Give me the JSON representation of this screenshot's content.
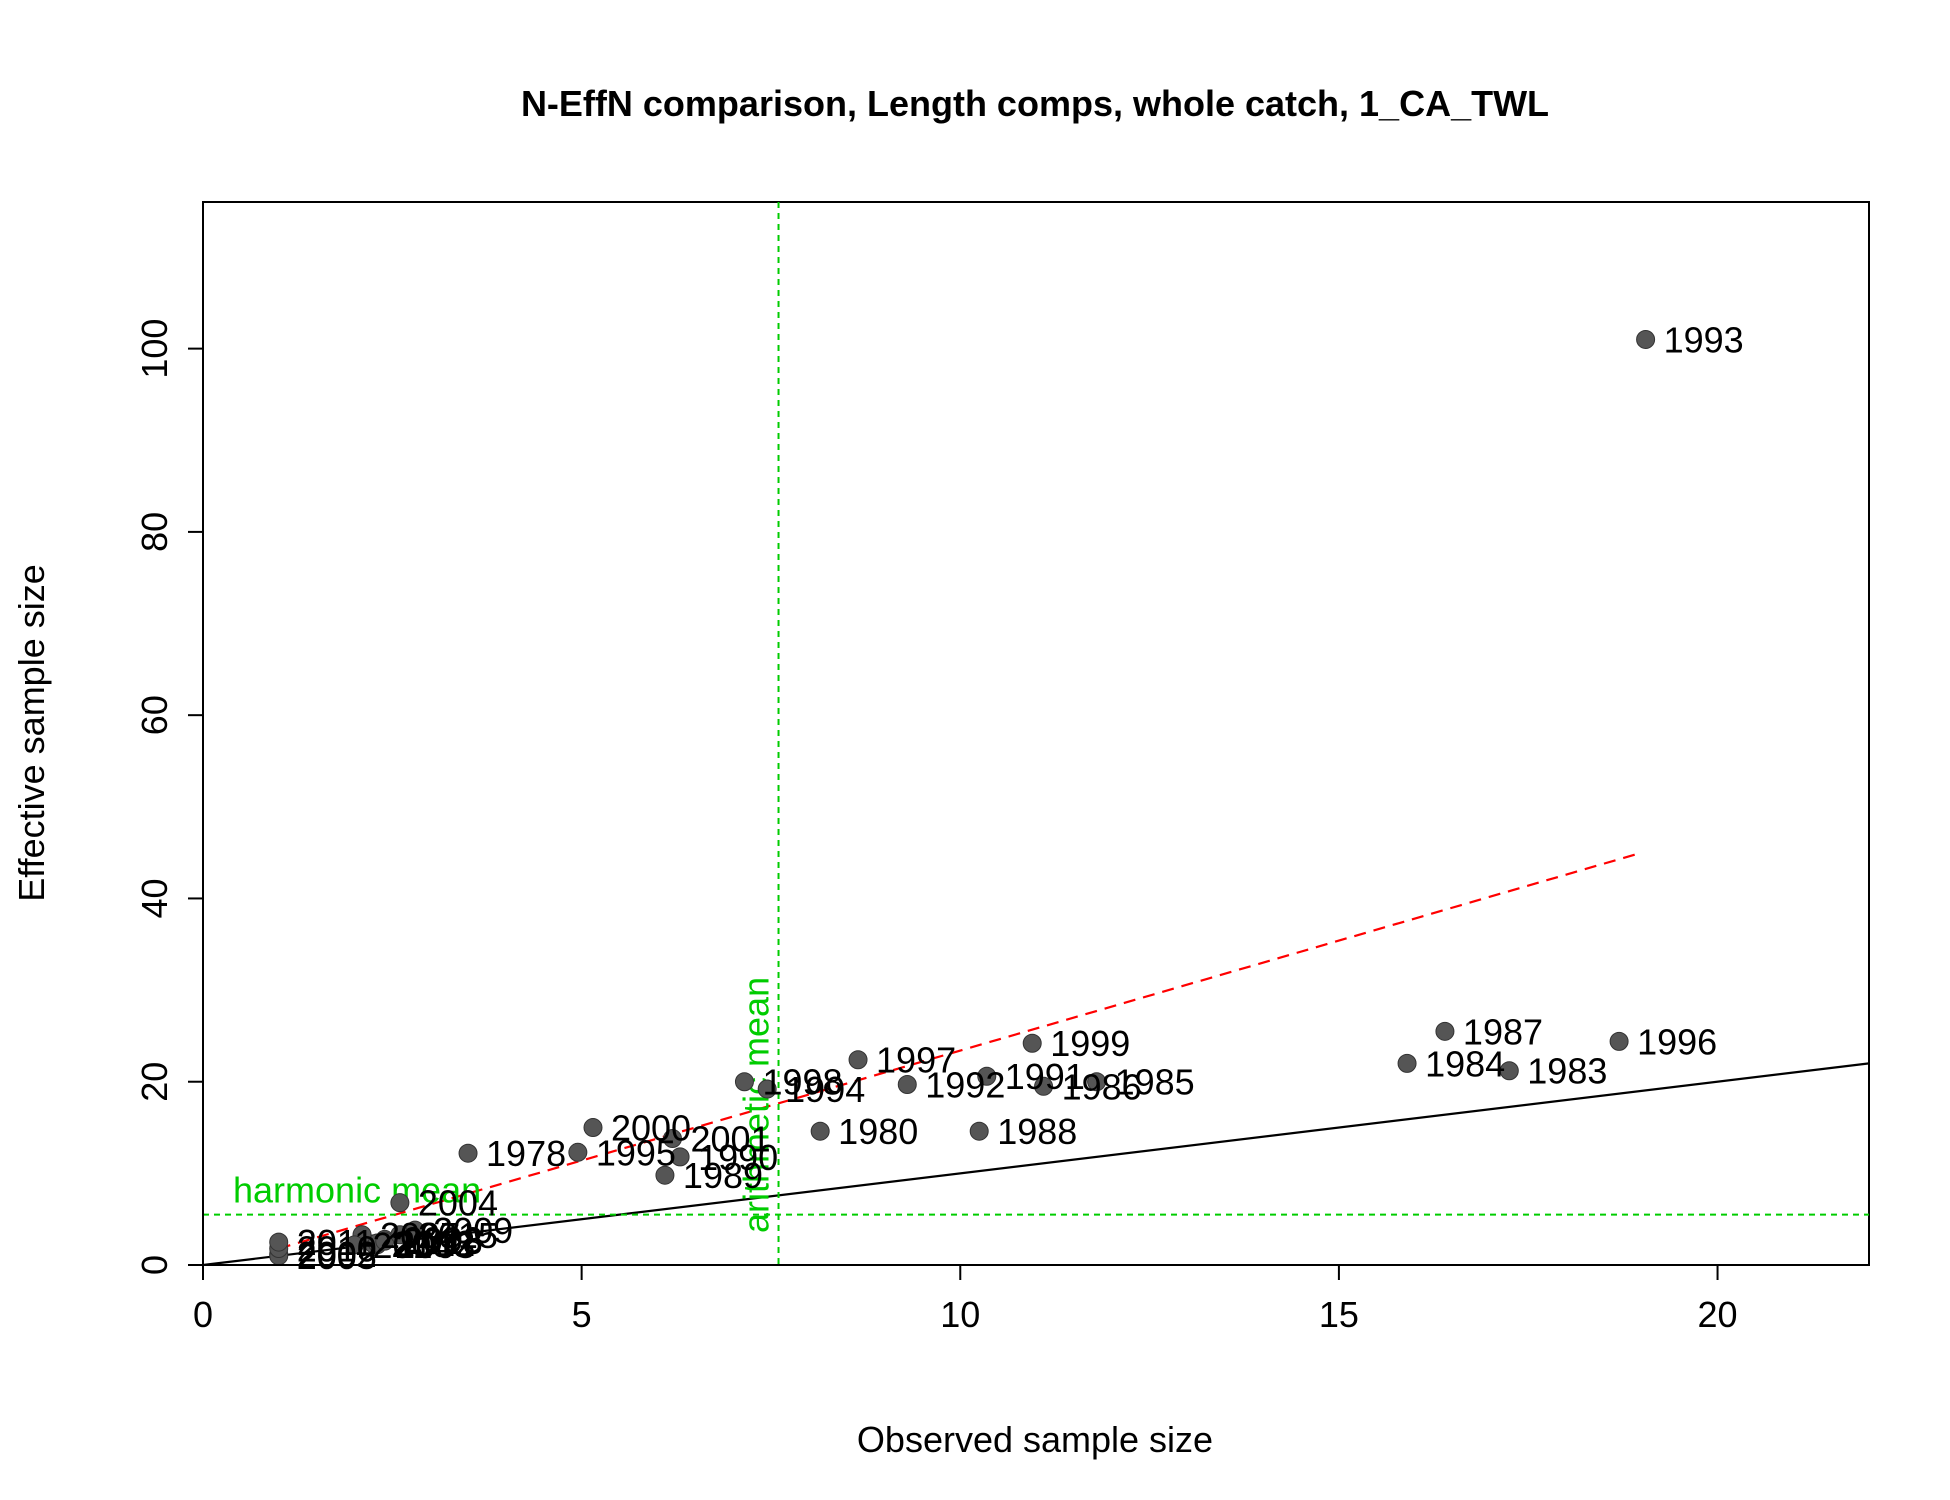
{
  "chart_data": {
    "type": "scatter",
    "title": "N-EffN comparison, Length comps, whole catch, 1_CA_TWL",
    "xlabel": "Observed sample size",
    "ylabel": "Effective sample size",
    "xlim": [
      0,
      22
    ],
    "ylim": [
      0,
      116
    ],
    "x_ticks": [
      0,
      5,
      10,
      15,
      20
    ],
    "y_ticks": [
      0,
      20,
      40,
      60,
      80,
      100
    ],
    "x_tick_labels": [
      "0",
      "5",
      "10",
      "15",
      "20"
    ],
    "y_tick_labels": [
      "0",
      "20",
      "40",
      "60",
      "80",
      "100"
    ],
    "grid": false,
    "points": [
      {
        "label": "1978",
        "x": 3.5,
        "y": 12.2
      },
      {
        "label": "1980",
        "x": 8.15,
        "y": 14.6
      },
      {
        "label": "1983",
        "x": 17.25,
        "y": 21.2
      },
      {
        "label": "1984",
        "x": 15.9,
        "y": 22.0
      },
      {
        "label": "1985",
        "x": 11.8,
        "y": 20.0
      },
      {
        "label": "1986",
        "x": 11.1,
        "y": 19.5
      },
      {
        "label": "1987",
        "x": 16.4,
        "y": 25.5
      },
      {
        "label": "1988",
        "x": 10.25,
        "y": 14.6
      },
      {
        "label": "1989",
        "x": 6.1,
        "y": 9.8
      },
      {
        "label": "1990",
        "x": 6.3,
        "y": 11.8
      },
      {
        "label": "1991",
        "x": 10.35,
        "y": 20.6
      },
      {
        "label": "1992",
        "x": 9.3,
        "y": 19.7
      },
      {
        "label": "1993",
        "x": 19.05,
        "y": 101.0
      },
      {
        "label": "1994",
        "x": 7.45,
        "y": 19.2
      },
      {
        "label": "1995",
        "x": 4.95,
        "y": 12.3
      },
      {
        "label": "1996",
        "x": 18.7,
        "y": 24.4
      },
      {
        "label": "1997",
        "x": 8.65,
        "y": 22.4
      },
      {
        "label": "1998",
        "x": 7.15,
        "y": 20.0
      },
      {
        "label": "1999",
        "x": 10.95,
        "y": 24.2
      },
      {
        "label": "2000",
        "x": 5.15,
        "y": 15.0
      },
      {
        "label": "2001",
        "x": 6.2,
        "y": 13.8
      },
      {
        "label": "2002",
        "x": 1.0,
        "y": 1.2
      },
      {
        "label": "2003",
        "x": 2.3,
        "y": 2.2
      },
      {
        "label": "2004",
        "x": 2.6,
        "y": 6.8
      },
      {
        "label": "2005",
        "x": 1.0,
        "y": 1.0
      },
      {
        "label": "2006",
        "x": 2.25,
        "y": 2.3
      },
      {
        "label": "2007",
        "x": 2.1,
        "y": 3.3
      },
      {
        "label": "2008",
        "x": 2.4,
        "y": 2.8
      },
      {
        "label": "2009",
        "x": 2.8,
        "y": 3.8
      },
      {
        "label": "2010",
        "x": 1.0,
        "y": 1.8
      },
      {
        "label": "2011",
        "x": 1.0,
        "y": 2.5
      },
      {
        "label": "2012",
        "x": 2.3,
        "y": 2.4
      },
      {
        "label": "2013",
        "x": 2.4,
        "y": 2.6
      },
      {
        "label": "2014",
        "x": 2.0,
        "y": 2.2
      },
      {
        "label": "2015",
        "x": 2.6,
        "y": 3.3
      }
    ],
    "reference_lines": {
      "one_to_one": {
        "from": [
          0,
          0
        ],
        "to": [
          22,
          22
        ],
        "color": "#000000"
      },
      "fit": {
        "from": [
          1,
          1.8
        ],
        "to": [
          19,
          45
        ],
        "color": "#ff0000"
      },
      "harmonic_mean": {
        "label": "harmonic mean",
        "y": 5.5,
        "color": "#00cc00"
      },
      "arithmetic_mean": {
        "label": "arithmetic mean",
        "x": 7.6,
        "color": "#00cc00"
      }
    },
    "point_color": "#555555"
  }
}
